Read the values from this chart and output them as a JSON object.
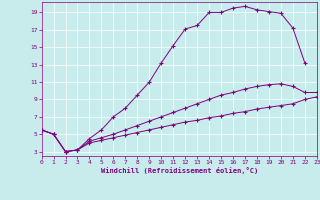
{
  "xlabel": "Windchill (Refroidissement éolien,°C)",
  "background_color": "#c8ecec",
  "line_color": "#800080",
  "xlim": [
    0,
    23
  ],
  "ylim": [
    2.5,
    20.2
  ],
  "xticks": [
    0,
    1,
    2,
    3,
    4,
    5,
    6,
    7,
    8,
    9,
    10,
    11,
    12,
    13,
    14,
    15,
    16,
    17,
    18,
    19,
    20,
    21,
    22,
    23
  ],
  "yticks": [
    3,
    5,
    7,
    9,
    11,
    13,
    15,
    17,
    19
  ],
  "series": [
    {
      "x": [
        0,
        1,
        2,
        3,
        4,
        5,
        6,
        7,
        8,
        9,
        10,
        11,
        12,
        13,
        14,
        15,
        16,
        17,
        18,
        19,
        20,
        21,
        22
      ],
      "y": [
        5.5,
        5.0,
        3.0,
        3.2,
        4.5,
        5.5,
        7.0,
        8.0,
        9.5,
        11.0,
        13.2,
        15.2,
        17.1,
        17.5,
        19.0,
        19.0,
        19.5,
        19.7,
        19.3,
        19.1,
        18.9,
        17.2,
        13.2
      ]
    },
    {
      "x": [
        0,
        1,
        2,
        3,
        4,
        5,
        6,
        7,
        8,
        9,
        10,
        11,
        12,
        13,
        14,
        15,
        16,
        17,
        18,
        19,
        20,
        21,
        22,
        23
      ],
      "y": [
        5.5,
        5.0,
        3.0,
        3.2,
        4.2,
        4.6,
        5.0,
        5.5,
        6.0,
        6.5,
        7.0,
        7.5,
        8.0,
        8.5,
        9.0,
        9.5,
        9.8,
        10.2,
        10.5,
        10.7,
        10.8,
        10.5,
        9.8,
        9.8
      ]
    },
    {
      "x": [
        0,
        1,
        2,
        3,
        4,
        5,
        6,
        7,
        8,
        9,
        10,
        11,
        12,
        13,
        14,
        15,
        16,
        17,
        18,
        19,
        20,
        21,
        22,
        23
      ],
      "y": [
        5.5,
        5.0,
        3.0,
        3.2,
        4.0,
        4.3,
        4.6,
        4.9,
        5.2,
        5.5,
        5.8,
        6.1,
        6.4,
        6.6,
        6.9,
        7.1,
        7.4,
        7.6,
        7.9,
        8.1,
        8.3,
        8.5,
        9.0,
        9.3
      ]
    }
  ]
}
